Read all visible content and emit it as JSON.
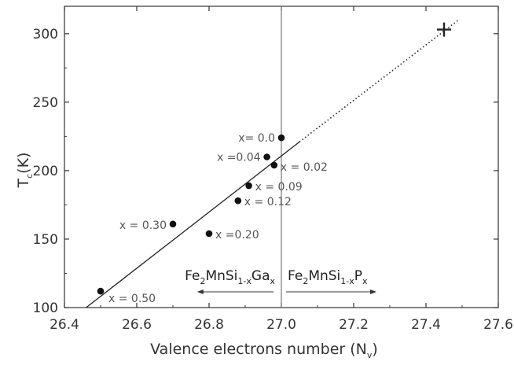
{
  "chart_data": {
    "type": "scatter",
    "title": "",
    "xlabel": "Valence electrons number (N",
    "xlabel_sub": "v",
    "xlabel_close": ")",
    "ylabel": "T",
    "ylabel_sub": "c",
    "ylabel_close": "(K)",
    "xlim": [
      26.4,
      27.6
    ],
    "ylim": [
      100,
      320
    ],
    "xticks": [
      26.4,
      26.6,
      26.8,
      27.0,
      27.2,
      27.4,
      27.6
    ],
    "xtick_labels": [
      "26.4",
      "26.6",
      "26.8",
      "27.0",
      "27.2",
      "27.4",
      "27.6"
    ],
    "yticks": [
      100,
      150,
      200,
      250,
      300
    ],
    "ytick_labels": [
      "100",
      "150",
      "200",
      "250",
      "300"
    ],
    "grid": false,
    "points": [
      {
        "x": 27.0,
        "y": 224,
        "label": "x= 0.0"
      },
      {
        "x": 26.96,
        "y": 210,
        "label": "x =0.04"
      },
      {
        "x": 26.98,
        "y": 204,
        "label": "x = 0.02"
      },
      {
        "x": 26.91,
        "y": 189,
        "label": "x = 0.09"
      },
      {
        "x": 26.88,
        "y": 178,
        "label": "x = 0.12"
      },
      {
        "x": 26.7,
        "y": 161,
        "label": "x = 0.30"
      },
      {
        "x": 26.8,
        "y": 154,
        "label": "x =0.20"
      },
      {
        "x": 26.5,
        "y": 112,
        "label": "x = 0.50"
      }
    ],
    "fit_line": {
      "x": [
        26.46,
        27.05
      ],
      "y": [
        100,
        221
      ]
    },
    "extrapolation": {
      "x": [
        27.05,
        27.49
      ],
      "y": [
        221,
        310
      ]
    },
    "marker_plus": {
      "x": 27.45,
      "y": 303
    },
    "divider_x": 27.0,
    "regions": [
      {
        "base": "Fe",
        "sub1": "2",
        "mid": "MnSi",
        "sub2": "1-x",
        "dopant": "Ga",
        "sub3": "x",
        "direction": "left"
      },
      {
        "base": "Fe",
        "sub1": "2",
        "mid": "MnSi",
        "sub2": "1-x",
        "dopant": "P",
        "sub3": "x",
        "direction": "right"
      }
    ],
    "colors": {
      "axis": "#333333",
      "points": "#111111",
      "fit": "#222222",
      "divider": "#777777"
    }
  }
}
